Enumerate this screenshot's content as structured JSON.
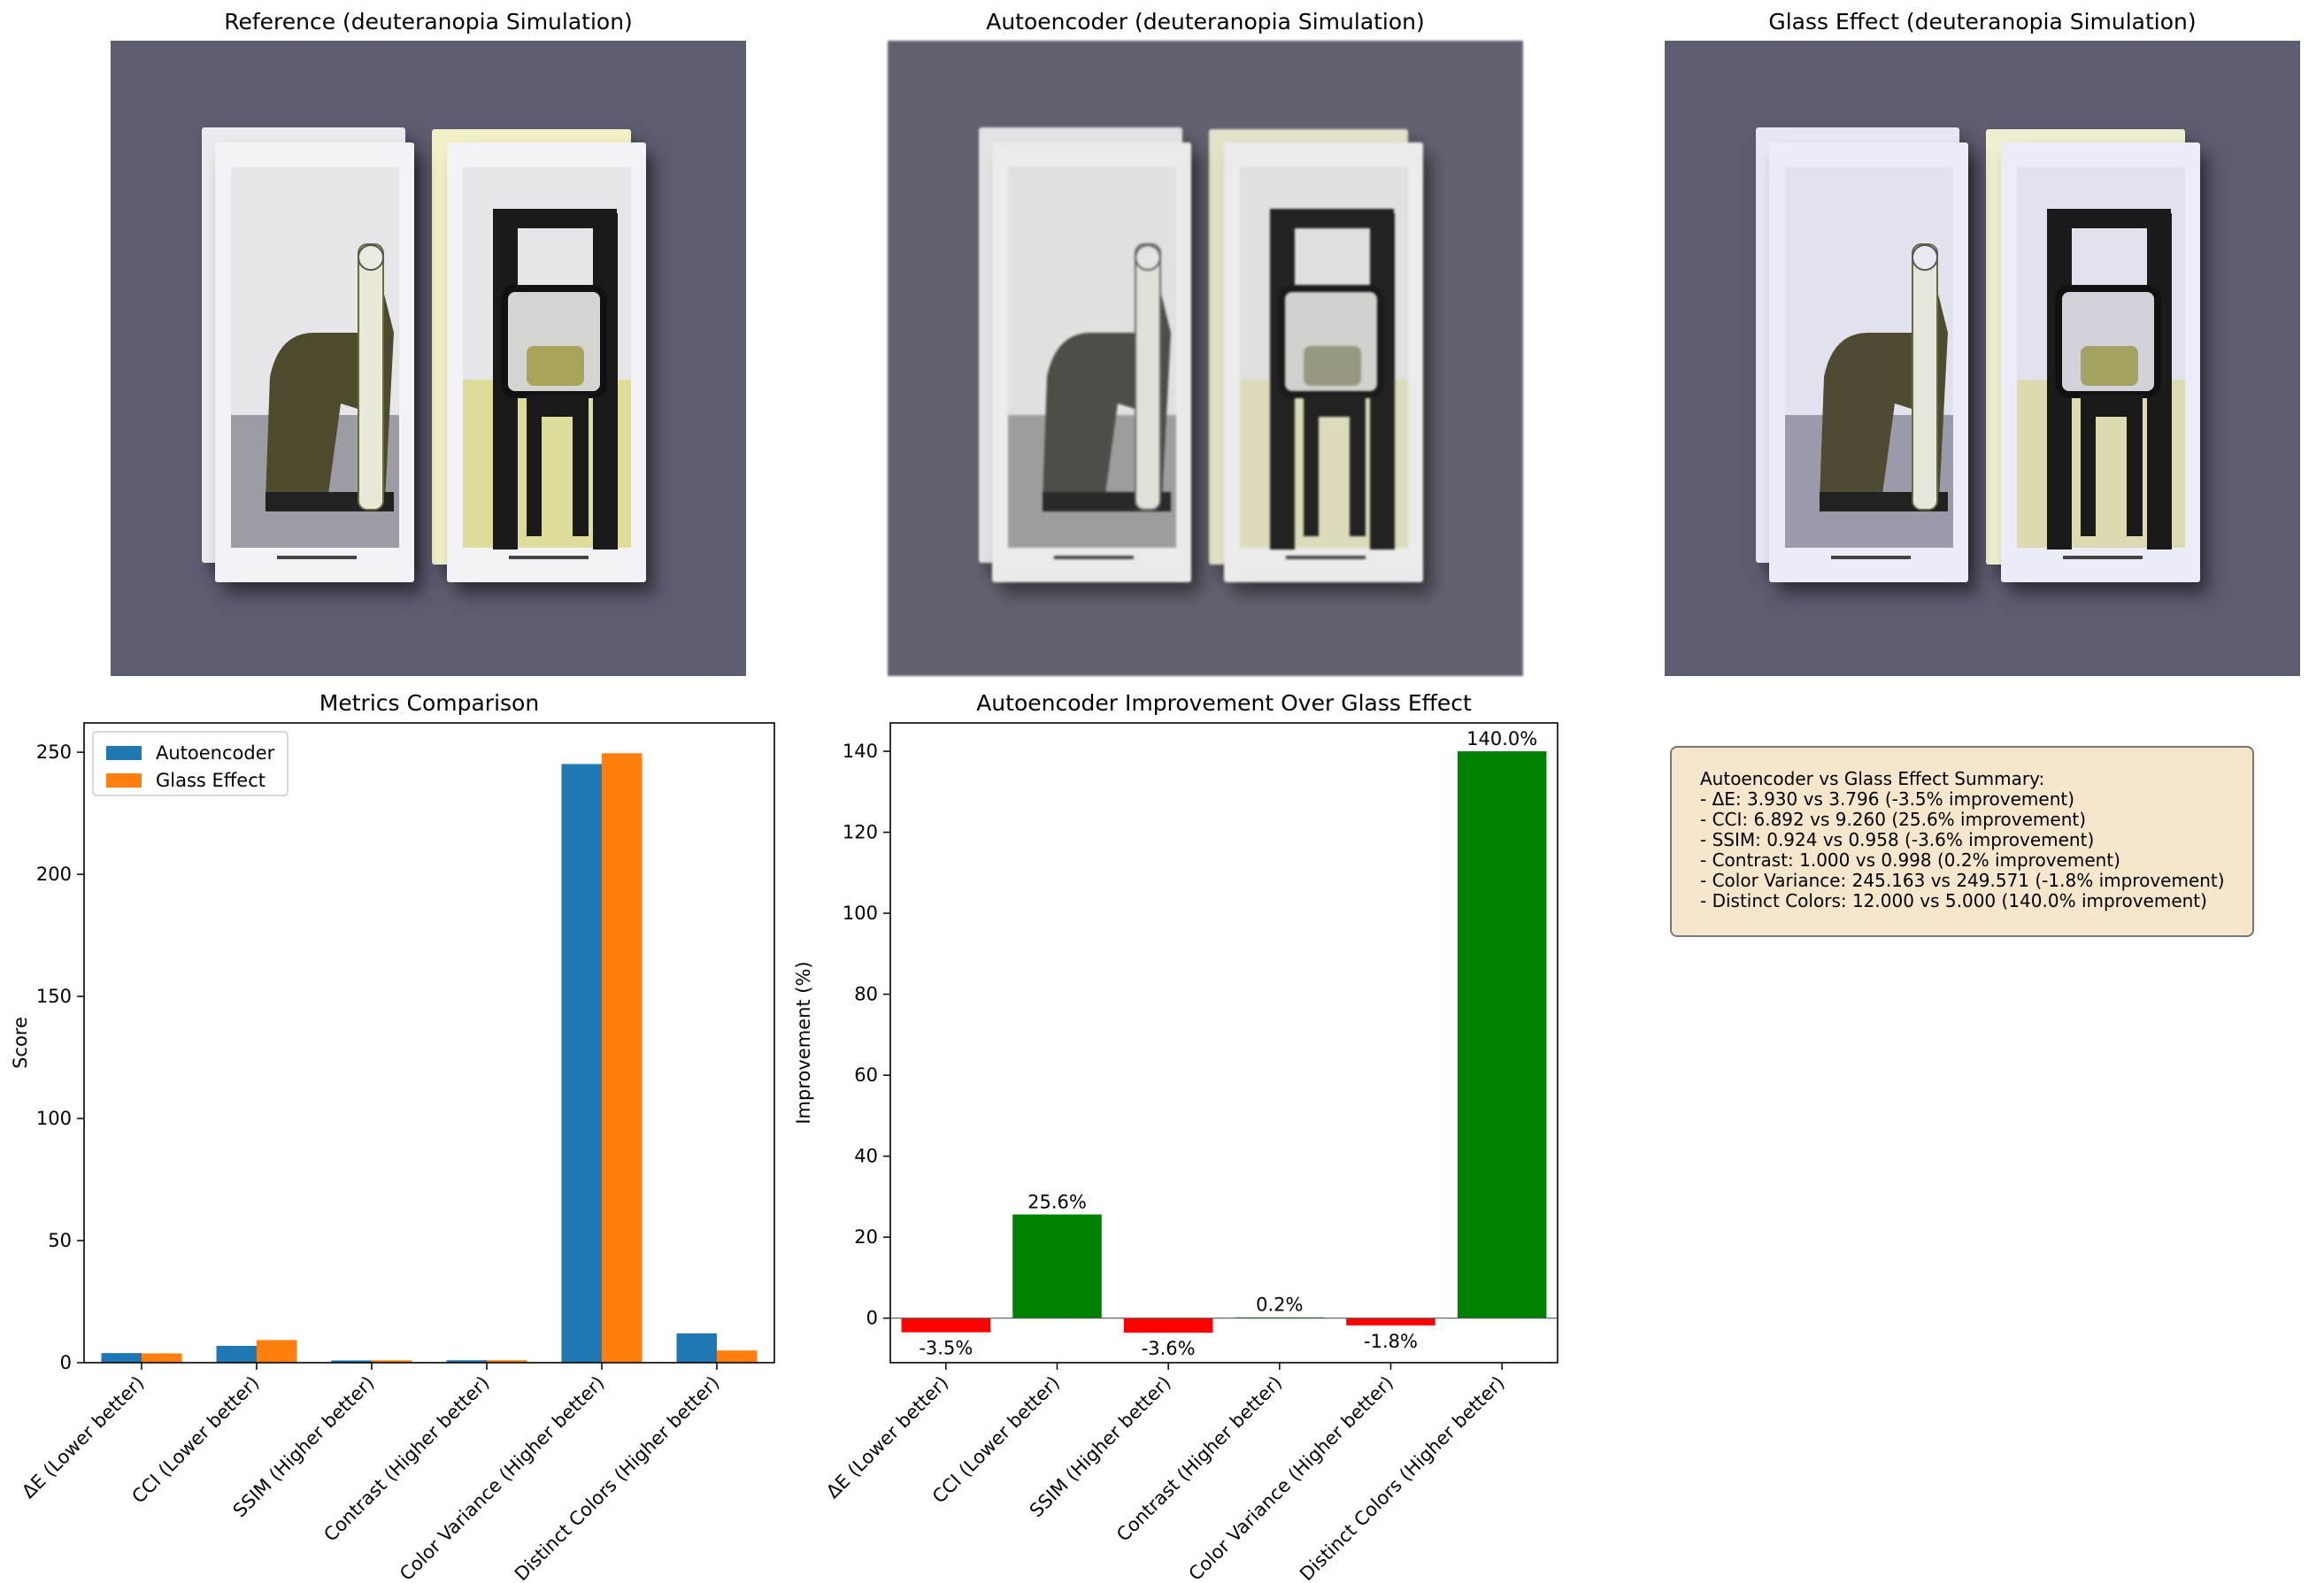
{
  "panels": {
    "reference_title": "Reference (deuteranopia Simulation)",
    "autoencoder_title": "Autoencoder (deuteranopia Simulation)",
    "glass_title": "Glass Effect (deuteranopia Simulation)"
  },
  "colors": {
    "autoencoder": "#1f77b4",
    "glass_effect": "#ff7f0e",
    "positive": "#008000",
    "negative": "#ff0000",
    "photo_background": "#5d5d72"
  },
  "summary": {
    "lines": [
      "Autoencoder vs Glass Effect Summary:",
      "- ΔE: 3.930 vs 3.796 (-3.5% improvement)",
      "- CCI: 6.892 vs 9.260 (25.6% improvement)",
      "- SSIM: 0.924 vs 0.958 (-3.6% improvement)",
      "- Contrast: 1.000 vs 0.998 (0.2% improvement)",
      "- Color Variance: 245.163 vs 249.571 (-1.8% improvement)",
      "- Distinct Colors: 12.000 vs 5.000 (140.0% improvement)"
    ]
  },
  "chart_data": [
    {
      "type": "bar",
      "title": "Metrics Comparison",
      "xlabel": "",
      "ylabel": "Score",
      "ylim": [
        0,
        262
      ],
      "yticks": [
        0,
        50,
        100,
        150,
        200,
        250
      ],
      "categories": [
        "ΔE (Lower better)",
        "CCI (Lower better)",
        "SSIM (Higher better)",
        "Contrast (Higher better)",
        "Color Variance (Higher better)",
        "Distinct Colors (Higher better)"
      ],
      "series": [
        {
          "name": "Autoencoder",
          "values": [
            3.93,
            6.892,
            0.924,
            1.0,
            245.163,
            12.0
          ]
        },
        {
          "name": "Glass Effect",
          "values": [
            3.796,
            9.26,
            0.958,
            0.998,
            249.571,
            5.0
          ]
        }
      ],
      "legend": "top-left",
      "grid": false
    },
    {
      "type": "bar",
      "title": "Autoencoder Improvement Over Glass Effect",
      "xlabel": "",
      "ylabel": "Improvement (%)",
      "ylim": [
        -11,
        147
      ],
      "yticks": [
        0,
        20,
        40,
        60,
        80,
        100,
        120,
        140
      ],
      "categories": [
        "ΔE (Lower better)",
        "CCI (Lower better)",
        "SSIM (Higher better)",
        "Contrast (Higher better)",
        "Color Variance (Higher better)",
        "Distinct Colors (Higher better)"
      ],
      "values": [
        -3.5,
        25.6,
        -3.6,
        0.2,
        -1.8,
        140.0
      ],
      "data_labels": [
        "-3.5%",
        "25.6%",
        "-3.6%",
        "0.2%",
        "-1.8%",
        "140.0%"
      ],
      "grid": false
    }
  ]
}
